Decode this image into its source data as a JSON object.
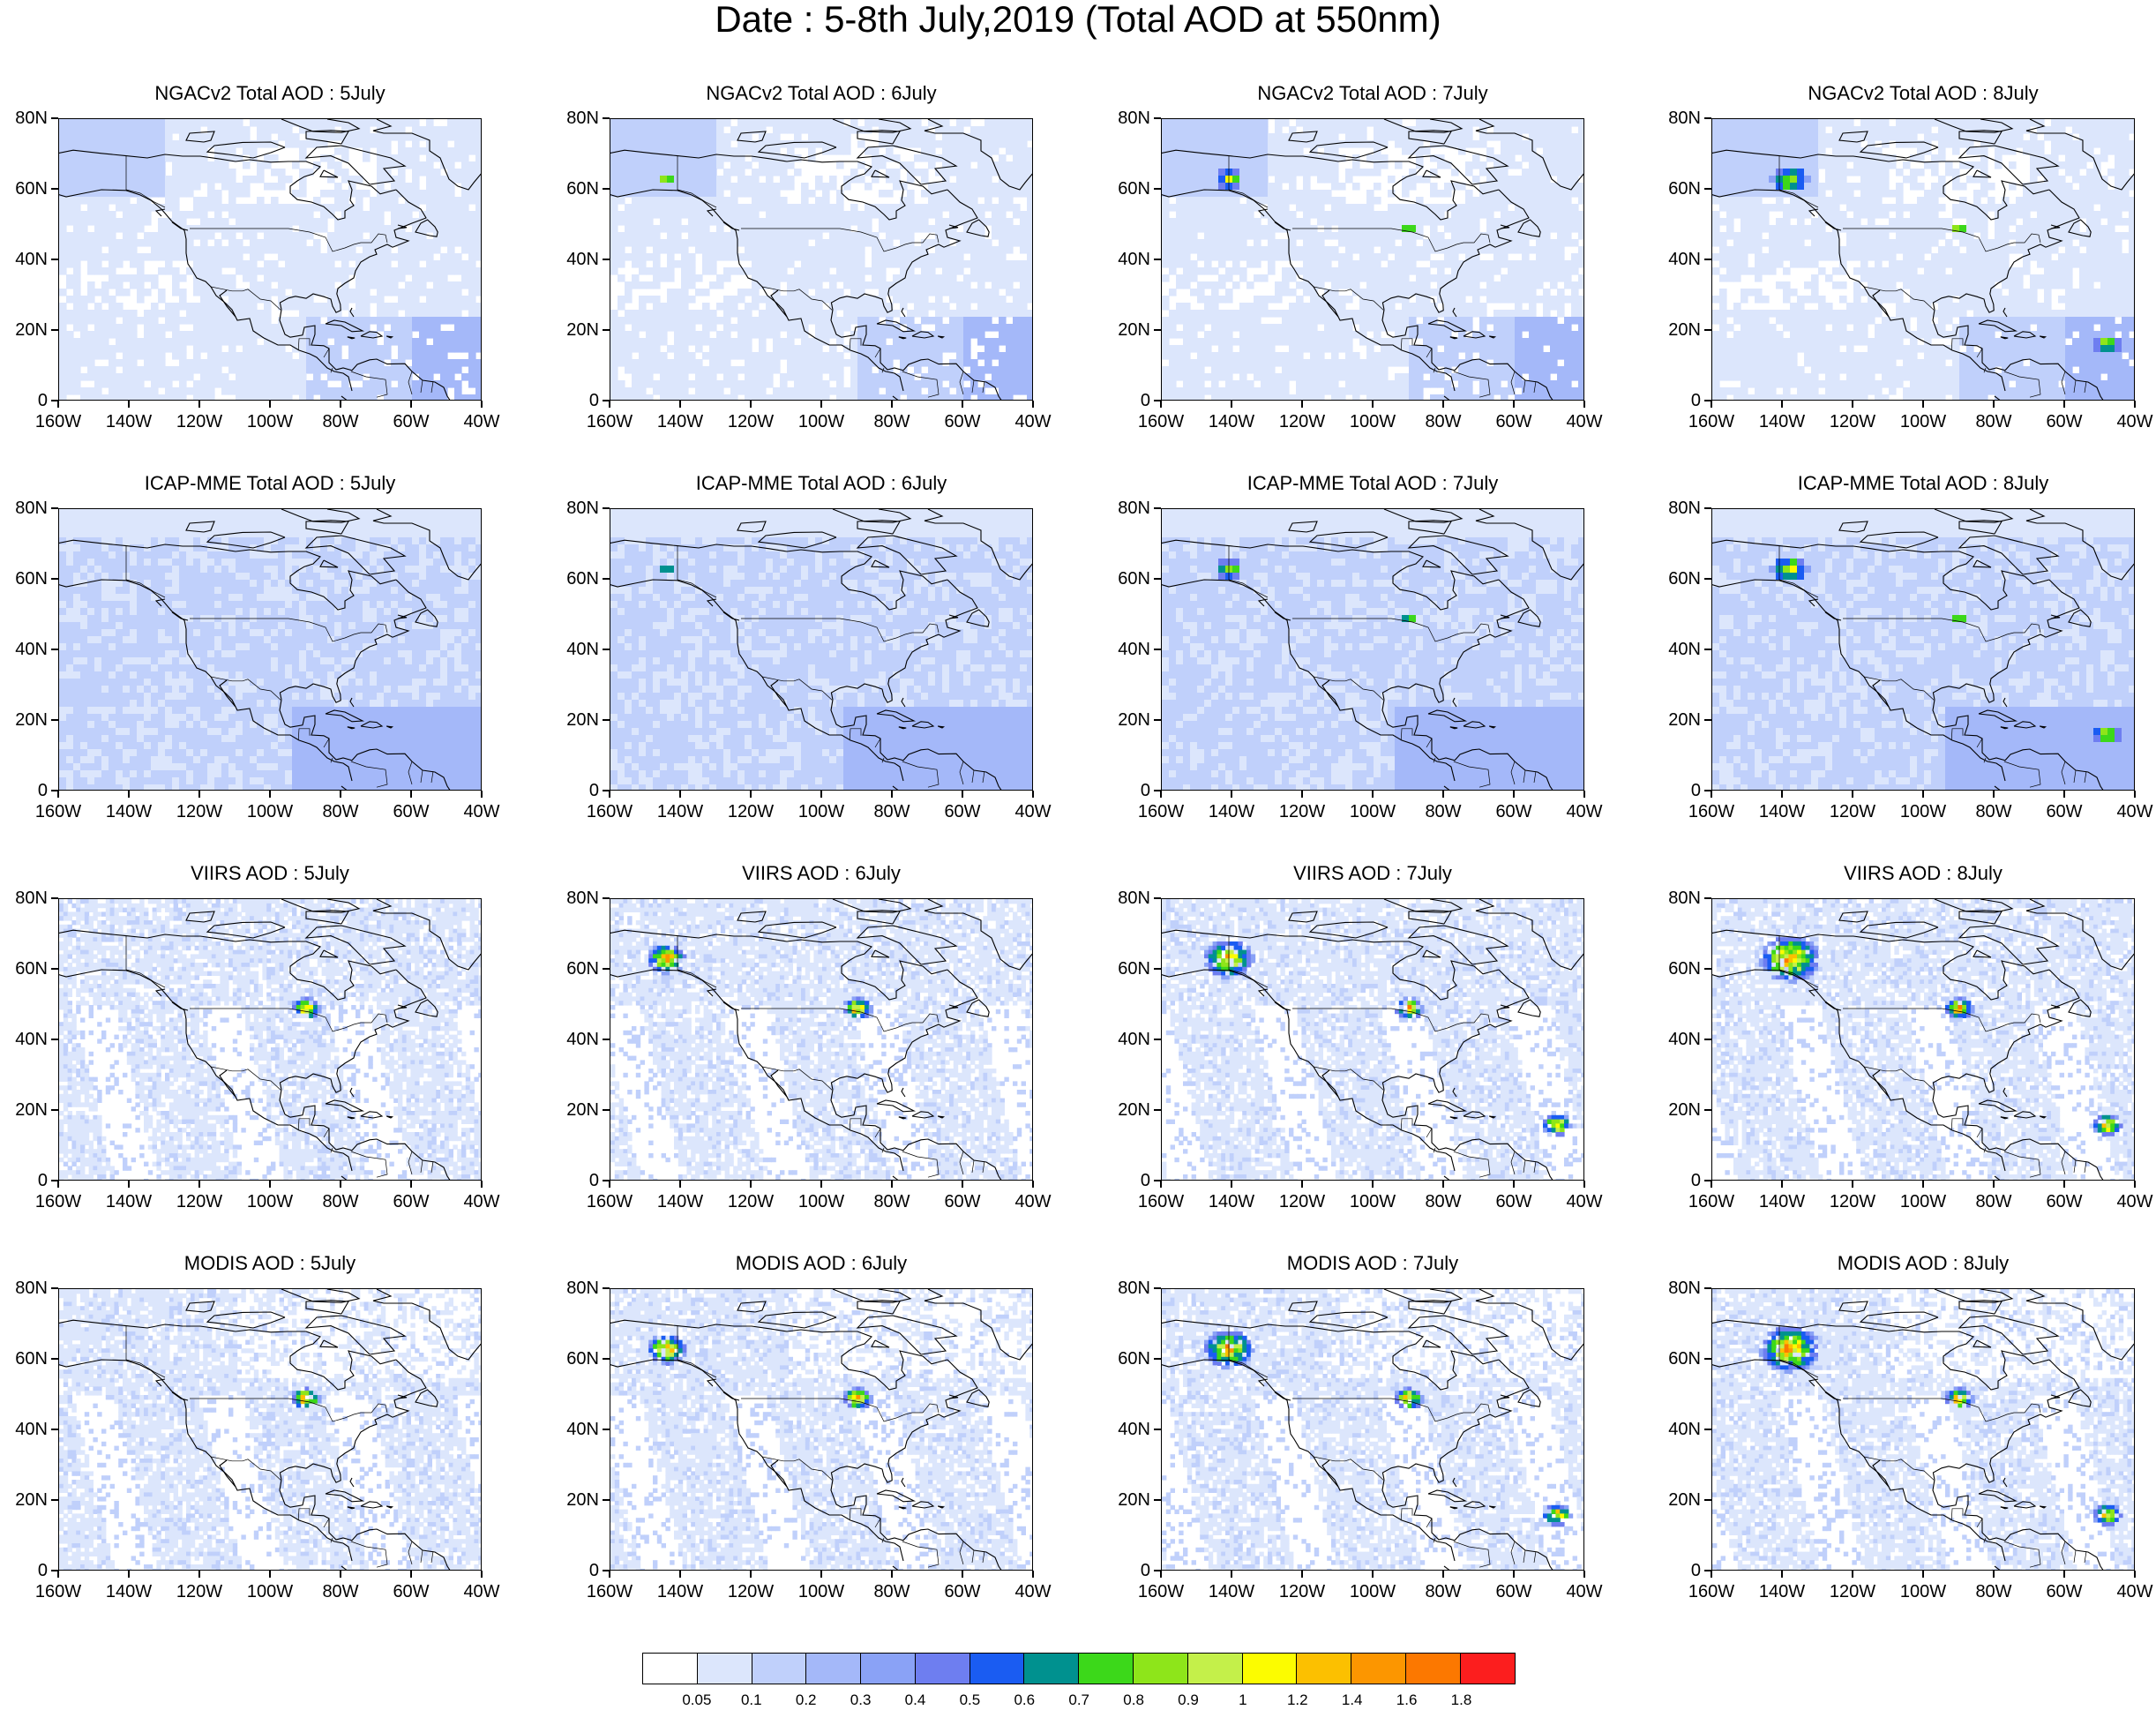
{
  "title": "Date : 5-8th July,2019 (Total AOD at 550nm)",
  "lat_labels": [
    "80N",
    "60N",
    "40N",
    "20N",
    "0"
  ],
  "lon_labels": [
    "160W",
    "140W",
    "120W",
    "100W",
    "80W",
    "60W",
    "40W"
  ],
  "rows": [
    {
      "model": "NGACv2",
      "titles": [
        "NGACv2 Total AOD : 5July",
        "NGACv2 Total AOD : 6July",
        "NGACv2 Total AOD : 7July",
        "NGACv2 Total AOD : 8July"
      ]
    },
    {
      "model": "ICAP-MME",
      "titles": [
        "ICAP-MME Total AOD : 5July",
        "ICAP-MME Total AOD : 6July",
        "ICAP-MME Total AOD : 7July",
        "ICAP-MME Total AOD : 8July"
      ]
    },
    {
      "model": "VIIRS",
      "titles": [
        "VIIRS AOD : 5July",
        "VIIRS AOD : 6July",
        "VIIRS AOD : 7July",
        "VIIRS AOD : 8July"
      ]
    },
    {
      "model": "MODIS",
      "titles": [
        "MODIS AOD : 5July",
        "MODIS AOD : 6July",
        "MODIS AOD : 7July",
        "MODIS AOD : 8July"
      ]
    }
  ],
  "colorbar": {
    "labels": [
      "0.05",
      "0.1",
      "0.2",
      "0.3",
      "0.4",
      "0.5",
      "0.6",
      "0.7",
      "0.8",
      "0.9",
      "1",
      "1.2",
      "1.4",
      "1.6",
      "1.8"
    ],
    "colors": [
      "#ffffff",
      "#dce6fc",
      "#c0d0fb",
      "#a4b8f9",
      "#8aa2f6",
      "#6e7ef0",
      "#1a5cf2",
      "#00918f",
      "#3cd81a",
      "#8ee51a",
      "#c4f04a",
      "#fcfc00",
      "#fcc000",
      "#fc9600",
      "#fc7800",
      "#fc1e1e"
    ]
  }
}
